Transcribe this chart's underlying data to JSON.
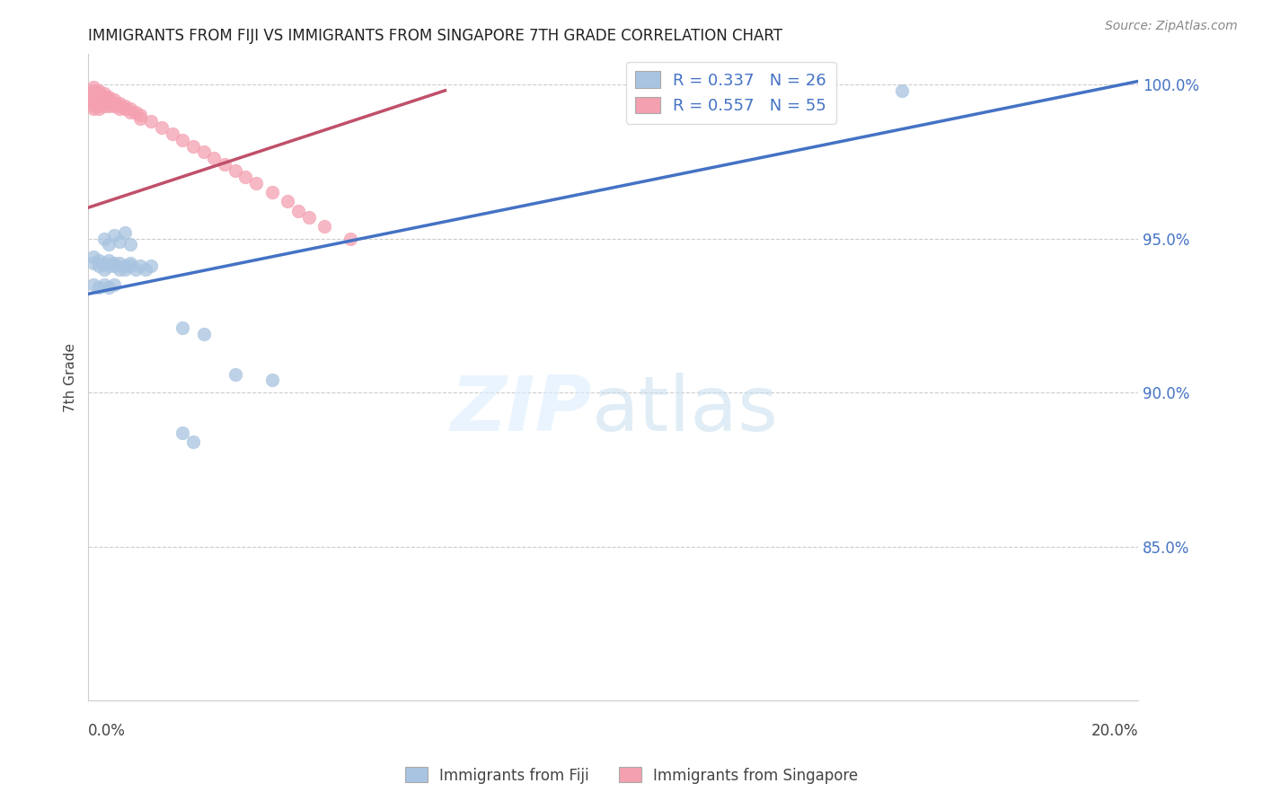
{
  "title": "IMMIGRANTS FROM FIJI VS IMMIGRANTS FROM SINGAPORE 7TH GRADE CORRELATION CHART",
  "source": "Source: ZipAtlas.com",
  "ylabel": "7th Grade",
  "xlim": [
    0.0,
    0.2
  ],
  "ylim": [
    0.8,
    1.01
  ],
  "xticks": [
    0.0,
    0.04,
    0.08,
    0.12,
    0.16,
    0.2
  ],
  "yticks": [
    0.85,
    0.9,
    0.95,
    1.0
  ],
  "ytick_labels": [
    "85.0%",
    "90.0%",
    "95.0%",
    "100.0%"
  ],
  "fiji_color": "#a8c4e0",
  "singapore_color": "#f4a0b0",
  "fiji_line_color": "#4472C4",
  "singapore_line_color": "#C0506A",
  "fiji_line_x0": 0.0,
  "fiji_line_x1": 0.2,
  "fiji_line_y0": 0.932,
  "fiji_line_y1": 1.001,
  "sing_line_x0": 0.0,
  "sing_line_x1": 0.068,
  "sing_line_y0": 0.96,
  "sing_line_y1": 0.998,
  "fiji_scatter_x": [
    0.001,
    0.001,
    0.002,
    0.002,
    0.003,
    0.003,
    0.004,
    0.004,
    0.005,
    0.005,
    0.006,
    0.006,
    0.007,
    0.007,
    0.008,
    0.008,
    0.009,
    0.01,
    0.011,
    0.012,
    0.003,
    0.004,
    0.005,
    0.006,
    0.007,
    0.008,
    0.018,
    0.022,
    0.028,
    0.035,
    0.018,
    0.02,
    0.001,
    0.002,
    0.003,
    0.004,
    0.005,
    0.155
  ],
  "fiji_scatter_y": [
    0.942,
    0.944,
    0.941,
    0.943,
    0.94,
    0.942,
    0.941,
    0.943,
    0.942,
    0.941,
    0.94,
    0.942,
    0.941,
    0.94,
    0.942,
    0.941,
    0.94,
    0.941,
    0.94,
    0.941,
    0.95,
    0.948,
    0.951,
    0.949,
    0.952,
    0.948,
    0.921,
    0.919,
    0.906,
    0.904,
    0.887,
    0.884,
    0.935,
    0.934,
    0.935,
    0.934,
    0.935,
    0.998
  ],
  "singapore_scatter_x": [
    0.001,
    0.001,
    0.001,
    0.001,
    0.001,
    0.001,
    0.001,
    0.001,
    0.002,
    0.002,
    0.002,
    0.002,
    0.002,
    0.002,
    0.002,
    0.003,
    0.003,
    0.003,
    0.003,
    0.003,
    0.004,
    0.004,
    0.004,
    0.004,
    0.005,
    0.005,
    0.005,
    0.006,
    0.006,
    0.006,
    0.007,
    0.007,
    0.008,
    0.008,
    0.009,
    0.01,
    0.01,
    0.012,
    0.014,
    0.016,
    0.018,
    0.02,
    0.022,
    0.024,
    0.026,
    0.028,
    0.03,
    0.032,
    0.035,
    0.038,
    0.04,
    0.042,
    0.045,
    0.05
  ],
  "singapore_scatter_y": [
    0.999,
    0.998,
    0.997,
    0.996,
    0.995,
    0.994,
    0.993,
    0.992,
    0.998,
    0.997,
    0.996,
    0.995,
    0.994,
    0.993,
    0.992,
    0.997,
    0.996,
    0.995,
    0.994,
    0.993,
    0.996,
    0.995,
    0.994,
    0.993,
    0.995,
    0.994,
    0.993,
    0.994,
    0.993,
    0.992,
    0.993,
    0.992,
    0.992,
    0.991,
    0.991,
    0.99,
    0.989,
    0.988,
    0.986,
    0.984,
    0.982,
    0.98,
    0.978,
    0.976,
    0.974,
    0.972,
    0.97,
    0.968,
    0.965,
    0.962,
    0.959,
    0.957,
    0.954,
    0.95
  ]
}
